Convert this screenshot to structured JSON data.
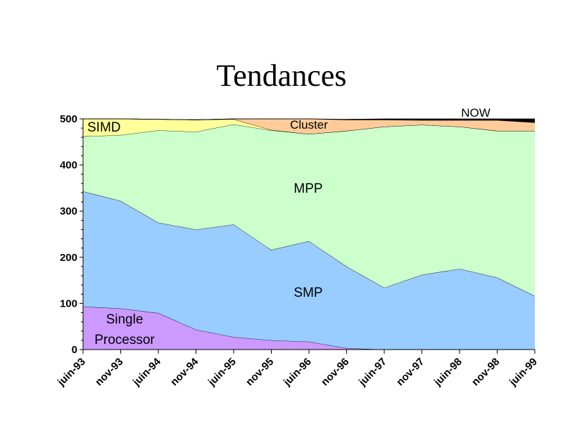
{
  "chart_data": {
    "type": "area",
    "title": "Tendances",
    "xlabel": "",
    "ylabel": "",
    "ylim": [
      0,
      500
    ],
    "yticks": [
      0,
      100,
      200,
      300,
      400,
      500
    ],
    "categories": [
      "juin-93",
      "nov-93",
      "juin-94",
      "nov-94",
      "juin-95",
      "nov-95",
      "juin-96",
      "nov-96",
      "juin-97",
      "nov-97",
      "juin-98",
      "nov-98",
      "juin-99"
    ],
    "stacked": true,
    "series": [
      {
        "name": "Single Processor",
        "color": "#cc99ff",
        "values": [
          93,
          89,
          79,
          43,
          27,
          20,
          17,
          3,
          0,
          0,
          0,
          0,
          0
        ]
      },
      {
        "name": "SMP",
        "color": "#99ccff",
        "values": [
          250,
          233,
          196,
          217,
          244,
          196,
          218,
          177,
          134,
          162,
          175,
          156,
          116
        ]
      },
      {
        "name": "MPP",
        "color": "#ccffcc",
        "values": [
          119,
          143,
          200,
          212,
          217,
          259,
          232,
          294,
          349,
          325,
          308,
          318,
          358
        ]
      },
      {
        "name": "SIMD",
        "color": "#ffff99",
        "values": [
          38,
          35,
          24,
          26,
          11,
          1,
          0,
          0,
          0,
          0,
          0,
          0,
          0
        ]
      },
      {
        "name": "Cluster",
        "color": "#ffcc99",
        "values": [
          0,
          0,
          0,
          0,
          1,
          24,
          33,
          24,
          15,
          10,
          14,
          23,
          18
        ]
      },
      {
        "name": "NOW",
        "color": "#000000",
        "values": [
          0,
          0,
          0,
          0,
          0,
          0,
          0,
          1,
          2,
          3,
          3,
          3,
          8
        ]
      }
    ],
    "labels": {
      "single": [
        "Single",
        "Processor"
      ],
      "smp": "SMP",
      "mpp": "MPP",
      "simd": "SIMD",
      "cluster": "Cluster",
      "now": "NOW"
    }
  }
}
